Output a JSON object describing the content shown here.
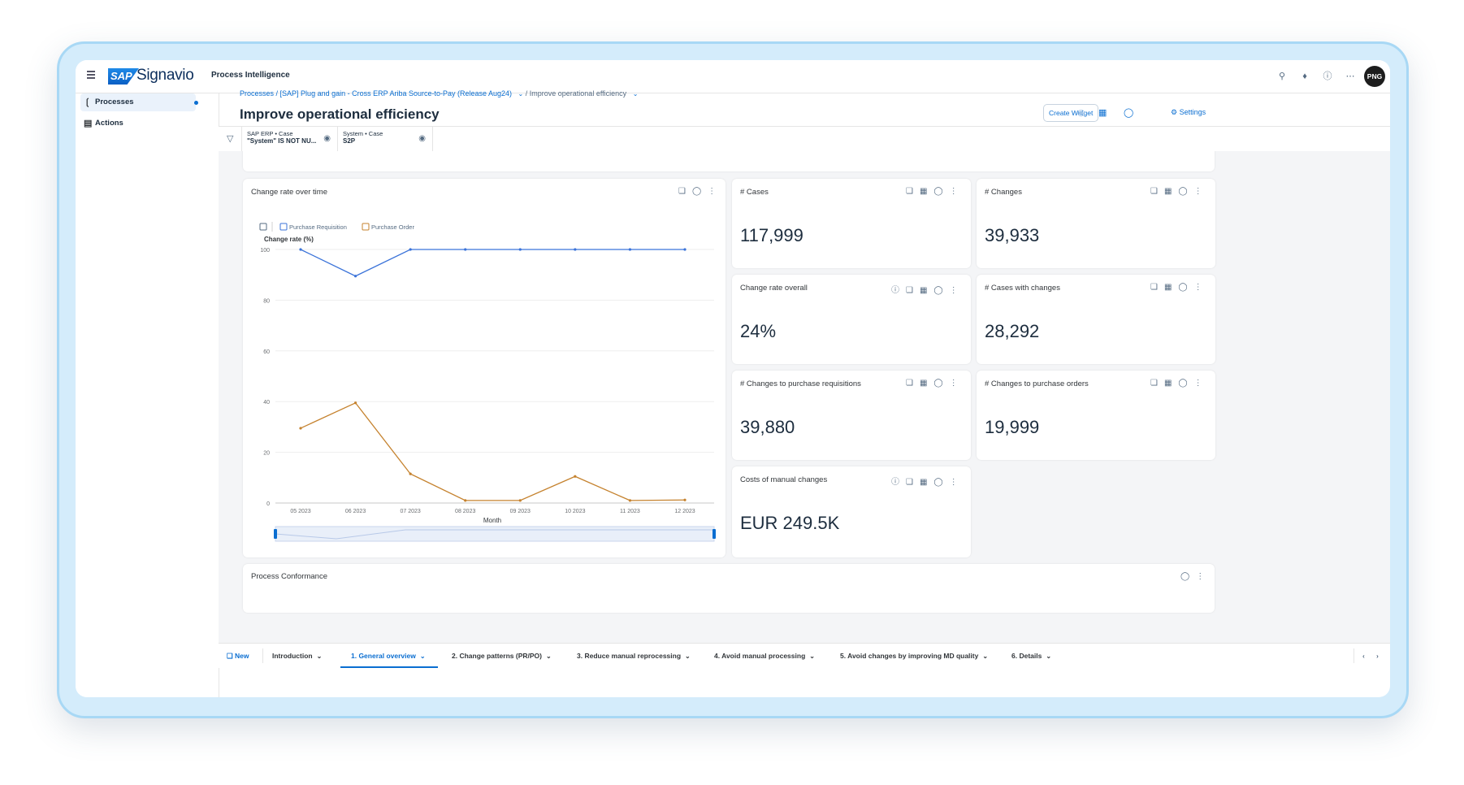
{
  "header": {
    "logo_sap": "SAP",
    "logo_text": "Signavio",
    "product": "Process Intelligence",
    "avatar": "PNG",
    "icons": [
      "search-icon",
      "bell-icon",
      "help-icon",
      "grid-icon"
    ]
  },
  "sidebar": {
    "items": [
      {
        "label": "Processes",
        "icon": "processes-icon",
        "active": true
      },
      {
        "label": "Actions",
        "icon": "actions-icon",
        "active": false
      }
    ]
  },
  "breadcrumb": {
    "part1": "Processes",
    "part2": "/ [SAP] Plug and gain - Cross ERP Ariba Source-to-Pay (Release Aug24)",
    "part3": "/ Improve operational efficiency"
  },
  "page": {
    "title": "Improve operational efficiency",
    "create_widget": "Create Widget",
    "settings": "Settings"
  },
  "filters": [
    {
      "key": "SAP ERP • Case",
      "value": "\"System\" IS NOT NU..."
    },
    {
      "key": "System • Case",
      "value": "S2P"
    }
  ],
  "chart_card": {
    "title": "Change rate over time",
    "legend": [
      "Purchase Requisition",
      "Purchase Order"
    ]
  },
  "chart_data": {
    "type": "line",
    "ylabel": "Change rate (%)",
    "xlabel": "Month",
    "x": [
      "05 2023",
      "06 2023",
      "07 2023",
      "08 2023",
      "09 2023",
      "10 2023",
      "11 2023",
      "12 2023"
    ],
    "yticks": [
      "100",
      "80",
      "60",
      "40",
      "20",
      "0"
    ],
    "ylim": [
      0,
      100
    ],
    "series": [
      {
        "name": "Purchase Requisition",
        "color": "#3b73d9",
        "values": [
          100,
          89.5,
          100,
          100,
          100,
          100,
          100,
          100
        ]
      },
      {
        "name": "Purchase Order",
        "color": "#c5822e",
        "values": [
          29.5,
          39.5,
          11.5,
          1,
          1,
          10.5,
          1,
          1.2
        ]
      }
    ]
  },
  "kpis": [
    {
      "title": "# Cases",
      "value": "117,999"
    },
    {
      "title": "# Changes",
      "value": "39,933"
    },
    {
      "title": "Change rate overall",
      "value": "24%"
    },
    {
      "title": "# Cases with changes",
      "value": "28,292"
    },
    {
      "title": "# Changes to purchase requisitions",
      "value": "39,880"
    },
    {
      "title": "# Changes to purchase orders",
      "value": "19,999"
    },
    {
      "title": "Costs of manual changes",
      "value": "EUR 249.5K"
    }
  ],
  "conformance": {
    "title": "Process Conformance"
  },
  "tabs": {
    "new": "New",
    "items": [
      "Introduction",
      "1. General overview",
      "2. Change patterns (PR/PO)",
      "3. Reduce manual reprocessing",
      "4. Avoid manual processing",
      "5. Avoid changes by improving MD quality",
      "6. Details"
    ]
  }
}
